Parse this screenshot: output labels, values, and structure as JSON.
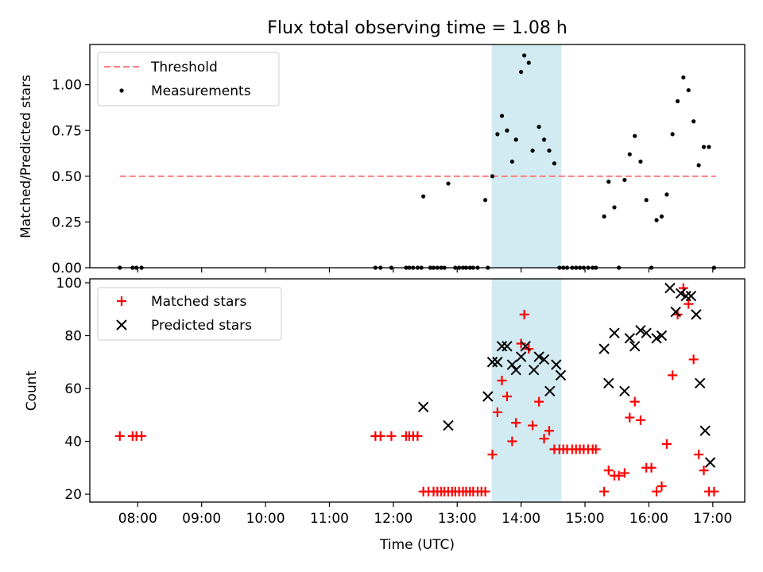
{
  "chart_data": {
    "title": "Flux total observing time = 1.08 h",
    "xlabel": "Time (UTC)",
    "x_ticks": [
      "08:00",
      "09:00",
      "10:00",
      "11:00",
      "12:00",
      "13:00",
      "14:00",
      "15:00",
      "16:00",
      "17:00"
    ],
    "x_tick_values": [
      8,
      9,
      10,
      11,
      12,
      13,
      14,
      15,
      16,
      17
    ],
    "xlim": [
      7.25,
      17.5
    ],
    "highlight_span": [
      13.54,
      14.63
    ],
    "highlight_color": "#add8e6",
    "panels": [
      {
        "type": "scatter",
        "ylabel": "Matched/Predicted stars",
        "ylim": [
          0,
          1.22
        ],
        "y_ticks": [
          "0.00",
          "0.25",
          "0.50",
          "0.75",
          "1.00"
        ],
        "y_tick_values": [
          0,
          0.25,
          0.5,
          0.75,
          1.0
        ],
        "legend_position": "top-left",
        "threshold": {
          "name": "Threshold",
          "value": 0.5,
          "x_range": [
            7.72,
            17.05
          ],
          "color": "#ff7f7f"
        },
        "series": [
          {
            "name": "Measurements",
            "marker": "dot",
            "color": "#000000",
            "x": [
              7.72,
              7.92,
              7.98,
              8.06,
              11.72,
              11.8,
              11.97,
              12.2,
              12.25,
              12.31,
              12.38,
              12.44,
              12.47,
              12.58,
              12.63,
              12.69,
              12.75,
              12.8,
              12.86,
              12.97,
              13.03,
              13.09,
              13.14,
              13.2,
              13.25,
              13.32,
              13.44,
              13.48,
              13.55,
              13.63,
              13.7,
              13.78,
              13.86,
              13.92,
              14.0,
              14.05,
              14.12,
              14.18,
              14.28,
              14.36,
              14.44,
              14.52,
              14.6,
              14.66,
              14.72,
              14.8,
              14.86,
              14.92,
              14.98,
              15.05,
              15.12,
              15.17,
              15.3,
              15.37,
              15.46,
              15.53,
              15.62,
              15.7,
              15.78,
              15.87,
              15.96,
              16.04,
              16.12,
              16.2,
              16.28,
              16.37,
              16.45,
              16.54,
              16.62,
              16.7,
              16.78,
              16.86,
              16.94,
              17.02
            ],
            "y": [
              0,
              0,
              0,
              0,
              0,
              0,
              0,
              0,
              0,
              0,
              0,
              0,
              0.39,
              0,
              0,
              0,
              0,
              0,
              0.46,
              0,
              0,
              0,
              0,
              0,
              0,
              0,
              0.37,
              0,
              0.5,
              0.73,
              0.83,
              0.75,
              0.58,
              0.7,
              1.07,
              1.16,
              1.12,
              0.64,
              0.77,
              0.7,
              0.64,
              0.57,
              0,
              0,
              0,
              0,
              0,
              0,
              0,
              0,
              0,
              0,
              0.28,
              0.47,
              0.33,
              0,
              0.48,
              0.62,
              0.72,
              0.58,
              0.37,
              0,
              0.26,
              0.28,
              0.4,
              0.73,
              0.91,
              1.04,
              0.97,
              0.8,
              0.56,
              0.66,
              0.66,
              0
            ]
          }
        ]
      },
      {
        "type": "scatter",
        "ylabel": "Count",
        "ylim": [
          17,
          101.5
        ],
        "y_ticks": [
          "20",
          "40",
          "60",
          "80",
          "100"
        ],
        "y_tick_values": [
          20,
          40,
          60,
          80,
          100
        ],
        "legend_position": "top-left",
        "series": [
          {
            "name": "Matched stars",
            "marker": "plus",
            "color": "#ff0000",
            "x": [
              7.72,
              7.92,
              7.98,
              8.06,
              11.72,
              11.8,
              11.97,
              12.2,
              12.25,
              12.31,
              12.38,
              12.47,
              12.55,
              12.63,
              12.69,
              12.75,
              12.8,
              12.86,
              12.92,
              12.97,
              13.03,
              13.09,
              13.14,
              13.2,
              13.25,
              13.32,
              13.38,
              13.44,
              13.55,
              13.63,
              13.7,
              13.78,
              13.86,
              13.92,
              14.0,
              14.05,
              14.12,
              14.18,
              14.28,
              14.36,
              14.44,
              14.52,
              14.6,
              14.66,
              14.72,
              14.8,
              14.86,
              14.92,
              14.98,
              15.05,
              15.12,
              15.17,
              15.3,
              15.37,
              15.46,
              15.53,
              15.62,
              15.7,
              15.78,
              15.87,
              15.96,
              16.04,
              16.12,
              16.2,
              16.28,
              16.37,
              16.45,
              16.54,
              16.62,
              16.7,
              16.78,
              16.86,
              16.94,
              17.02
            ],
            "y": [
              42,
              42,
              42,
              42,
              42,
              42,
              42,
              42,
              42,
              42,
              42,
              21,
              21,
              21,
              21,
              21,
              21,
              21,
              21,
              21,
              21,
              21,
              21,
              21,
              21,
              21,
              21,
              21,
              35,
              51,
              63,
              57,
              40,
              47,
              77,
              88,
              75,
              46,
              55,
              41,
              44,
              37,
              37,
              37,
              37,
              37,
              37,
              37,
              37,
              37,
              37,
              37,
              21,
              29,
              27,
              27,
              28,
              49,
              55,
              48,
              30,
              30,
              21,
              23,
              39,
              65,
              88,
              98,
              92,
              71,
              35,
              29,
              21,
              21
            ]
          },
          {
            "name": "Predicted stars",
            "marker": "x",
            "color": "#000000",
            "x": [
              12.47,
              12.86,
              13.48,
              13.55,
              13.63,
              13.7,
              13.78,
              13.86,
              13.92,
              14.0,
              14.07,
              14.2,
              14.28,
              14.36,
              14.45,
              14.55,
              14.62,
              15.3,
              15.37,
              15.46,
              15.62,
              15.7,
              15.78,
              15.87,
              15.96,
              16.12,
              16.2,
              16.33,
              16.42,
              16.5,
              16.58,
              16.66,
              16.74,
              16.8,
              16.88,
              16.96
            ],
            "y": [
              53,
              46,
              57,
              70,
              70,
              76,
              76,
              69,
              67,
              72,
              76,
              67,
              72,
              71,
              59,
              69,
              65,
              75,
              62,
              81,
              59,
              79,
              76,
              82,
              81,
              79,
              80,
              98,
              89,
              96,
              95,
              95,
              88,
              62,
              44,
              32
            ]
          }
        ]
      }
    ]
  }
}
